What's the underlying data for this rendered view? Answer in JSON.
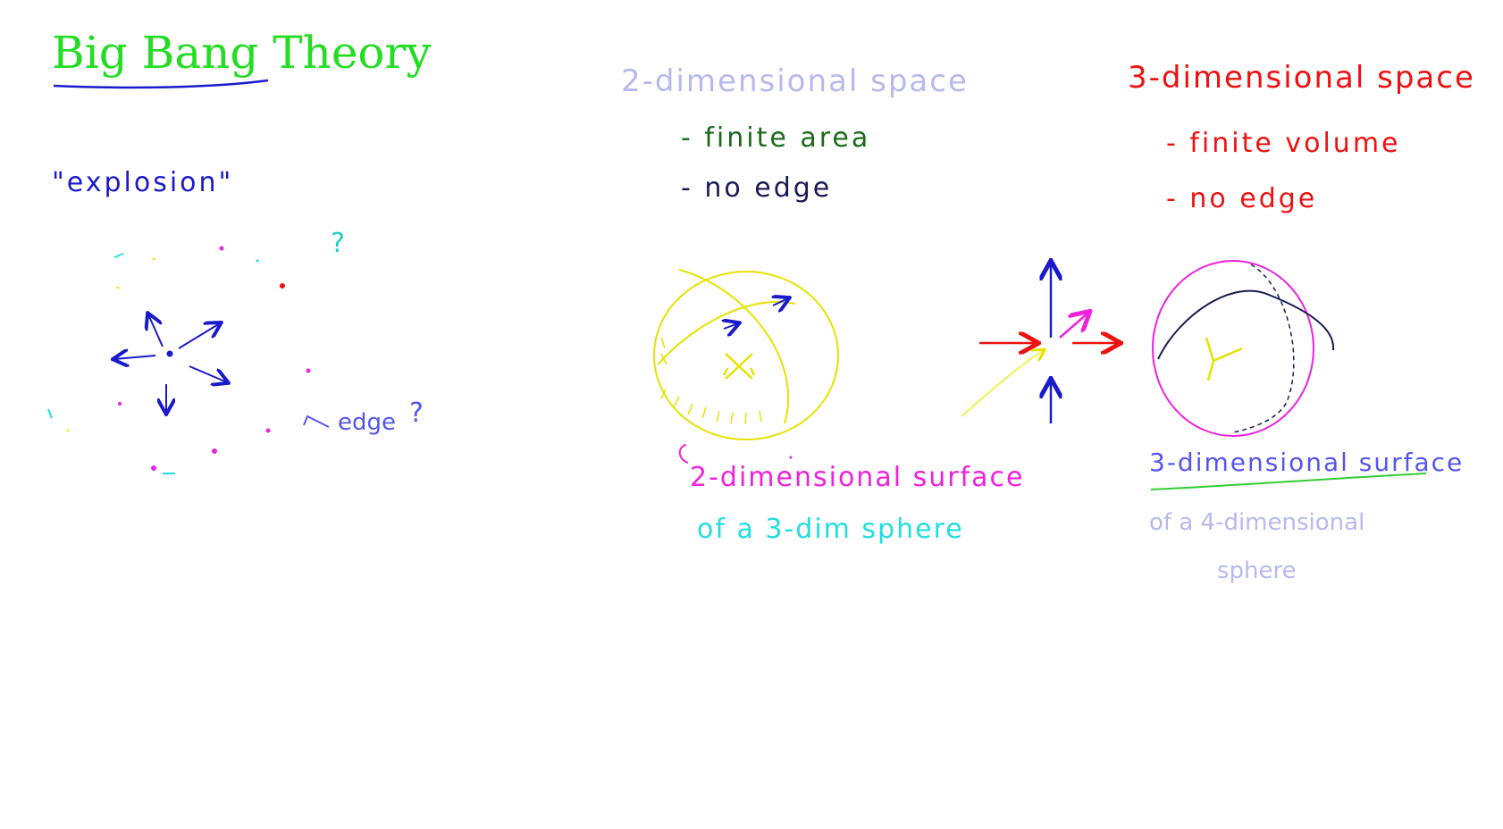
{
  "title": "Big Bang Theory",
  "explosion_label": "\"explosion\"",
  "edge_label": "edge",
  "question_mark": "?",
  "space2d": {
    "heading": "2-dimensional space",
    "bullets": [
      "- finite area",
      "- no edge"
    ]
  },
  "space3d": {
    "heading": "3-dimensional space",
    "bullets": [
      "- finite volume",
      "- no edge"
    ]
  },
  "caption2d": {
    "line1": "2-dimensional surface",
    "line2": "of a 3-dim sphere"
  },
  "caption3d": {
    "line1": "3-dimensional surface",
    "line2": "of a 4-dimensional",
    "line3": "sphere"
  },
  "colors": {
    "title": "#22dd22",
    "underline": "#1a1acc",
    "blue": "#1a1acc",
    "lavender": "#b8b8ee",
    "darkgreen": "#1a6a1a",
    "navy": "#1a1a55",
    "red": "#ee1111",
    "magenta": "#ee22dd",
    "cyan": "#22dddd",
    "yellow": "#f0ee22",
    "lightgreen": "#33cc33",
    "periwinkle": "#5555ee"
  }
}
